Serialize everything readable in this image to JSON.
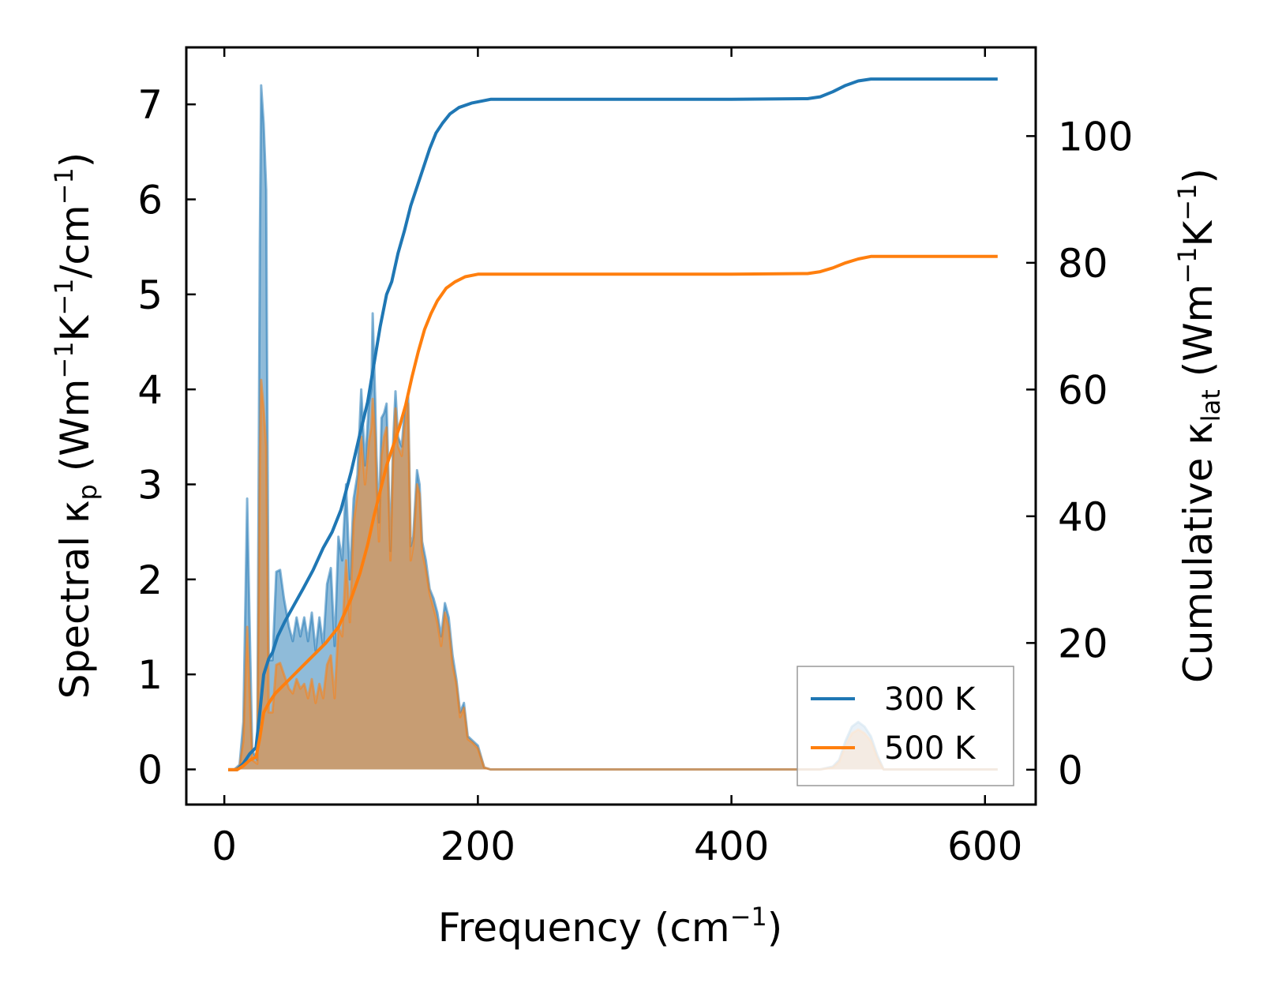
{
  "chart_data": {
    "type": "line",
    "xlabel": {
      "main": "Frequency (cm",
      "sup": "−1",
      "end": ")"
    },
    "ylabel_left": {
      "a": "Spectral κ",
      "a_sub": "p",
      "b": " (Wm",
      "b_sup": "−1",
      "c": "K",
      "c_sup": "−1",
      "d": "/cm",
      "d_sup": "−1",
      "e": ")"
    },
    "ylabel_right": {
      "a": "Cumulative κ",
      "a_sub": "lat",
      "b": " (Wm",
      "b_sup": "−1",
      "c": "K",
      "c_sup": "−1",
      "d": ")"
    },
    "xlim": [
      -30,
      640
    ],
    "ylim_left": [
      -0.37,
      7.6
    ],
    "ylim_right": [
      -5.5,
      114
    ],
    "xticks": [
      0,
      200,
      400,
      600
    ],
    "xtick_labels": [
      "0",
      "200",
      "400",
      "600"
    ],
    "yticks_left": [
      0,
      1,
      2,
      3,
      4,
      5,
      6,
      7
    ],
    "ytick_labels_left": [
      "0",
      "1",
      "2",
      "3",
      "4",
      "5",
      "6",
      "7"
    ],
    "yticks_right": [
      0,
      20,
      40,
      60,
      80,
      100
    ],
    "ytick_labels_right": [
      "0",
      "20",
      "40",
      "60",
      "80",
      "100"
    ],
    "legend": {
      "position": "lower-right",
      "entries": [
        "300 K",
        "500 K"
      ]
    },
    "colors": {
      "s300": "#1f77b4",
      "s500": "#ff7f0e"
    },
    "spectral": [
      {
        "name": "300 K",
        "x": [
          3,
          8,
          12,
          15,
          18,
          20,
          22,
          26,
          28,
          29,
          31,
          33,
          35,
          38,
          41,
          44,
          47,
          51,
          54,
          57,
          60,
          63,
          66,
          69,
          72,
          75,
          78,
          81,
          84,
          87,
          90,
          93,
          96,
          99,
          102,
          105,
          108,
          111,
          114,
          116,
          117,
          119,
          120,
          122,
          124,
          126,
          128,
          131,
          133,
          135,
          137,
          140,
          142,
          145,
          147,
          149,
          152,
          154,
          156,
          159,
          162,
          165,
          168,
          171,
          174,
          177,
          180,
          183,
          186,
          189,
          192,
          196,
          200,
          205,
          210,
          215,
          220,
          230,
          300,
          400,
          470,
          480,
          485,
          490,
          495,
          500,
          505,
          510,
          515,
          520,
          610
        ],
        "y": [
          0,
          0,
          0.05,
          0.5,
          2.85,
          1.5,
          0.2,
          0.1,
          5.5,
          7.2,
          6.8,
          6.1,
          1.15,
          1.15,
          2.08,
          2.1,
          1.8,
          1.5,
          1.35,
          1.6,
          1.4,
          1.6,
          1.35,
          1.65,
          1.25,
          1.6,
          1.3,
          1.95,
          2.12,
          1.3,
          2.45,
          2.2,
          3.0,
          2.0,
          2.85,
          3.1,
          4.0,
          3.2,
          3.85,
          4.0,
          4.8,
          3.9,
          3.3,
          2.6,
          3.7,
          3.75,
          3.85,
          2.3,
          3.4,
          3.98,
          3.5,
          3.4,
          3.75,
          3.95,
          2.35,
          2.45,
          3.15,
          3.0,
          2.4,
          2.2,
          1.9,
          1.8,
          1.65,
          1.4,
          1.75,
          1.6,
          1.2,
          0.95,
          0.6,
          0.7,
          0.35,
          0.3,
          0.25,
          0.02,
          0,
          0,
          0,
          0,
          0,
          0,
          0,
          0.03,
          0.1,
          0.3,
          0.45,
          0.5,
          0.45,
          0.35,
          0.15,
          0,
          0
        ]
      },
      {
        "name": "500 K",
        "x": [
          3,
          8,
          12,
          15,
          18,
          20,
          22,
          26,
          28,
          29,
          31,
          33,
          35,
          38,
          41,
          44,
          47,
          51,
          54,
          57,
          60,
          63,
          66,
          69,
          72,
          75,
          78,
          81,
          84,
          87,
          90,
          93,
          96,
          99,
          102,
          105,
          108,
          111,
          114,
          116,
          117,
          119,
          120,
          122,
          124,
          126,
          128,
          131,
          133,
          135,
          137,
          140,
          142,
          145,
          147,
          149,
          152,
          154,
          156,
          159,
          162,
          165,
          168,
          171,
          174,
          177,
          180,
          183,
          186,
          189,
          192,
          196,
          200,
          205,
          210,
          215,
          220,
          230,
          300,
          400,
          470,
          480,
          485,
          490,
          495,
          500,
          505,
          510,
          515,
          520,
          610
        ],
        "y": [
          0,
          0,
          0.03,
          0.3,
          1.5,
          0.8,
          0.1,
          0.06,
          3.2,
          4.1,
          3.8,
          3.4,
          0.6,
          0.6,
          1.1,
          1.12,
          1.0,
          0.85,
          0.8,
          0.95,
          0.85,
          0.9,
          0.75,
          0.95,
          0.7,
          0.9,
          0.75,
          1.1,
          1.2,
          0.75,
          1.5,
          1.4,
          2.2,
          1.55,
          2.6,
          2.9,
          3.5,
          3.0,
          3.45,
          3.6,
          3.9,
          3.5,
          3.0,
          2.4,
          3.3,
          3.5,
          3.6,
          2.2,
          3.2,
          3.8,
          3.4,
          3.3,
          3.6,
          3.85,
          2.2,
          2.35,
          3.0,
          2.9,
          2.3,
          2.1,
          1.85,
          1.7,
          1.55,
          1.3,
          1.65,
          1.5,
          1.1,
          0.9,
          0.55,
          0.65,
          0.32,
          0.28,
          0.22,
          0.02,
          0,
          0,
          0,
          0,
          0,
          0,
          0,
          0.02,
          0.08,
          0.25,
          0.38,
          0.42,
          0.38,
          0.3,
          0.12,
          0,
          0
        ]
      }
    ],
    "cumulative": [
      {
        "name": "300 K",
        "x": [
          3,
          10,
          15,
          20,
          25,
          28,
          31,
          35,
          38,
          42,
          48,
          55,
          62,
          70,
          78,
          85,
          92,
          100,
          107,
          113,
          118,
          123,
          128,
          132,
          137,
          142,
          147,
          152,
          157,
          162,
          167,
          172,
          178,
          185,
          195,
          210,
          250,
          400,
          460,
          470,
          480,
          490,
          500,
          510,
          530,
          610
        ],
        "y": [
          0,
          0,
          1.0,
          2.5,
          3.5,
          9.0,
          15.0,
          17.5,
          18.5,
          21.0,
          23.5,
          26.0,
          28.5,
          31.5,
          35.0,
          37.5,
          41.0,
          47.0,
          53.0,
          58.0,
          64.0,
          70.0,
          75.0,
          77.0,
          81.5,
          85.0,
          89.0,
          92.0,
          95.0,
          98.0,
          100.5,
          102.0,
          103.5,
          104.5,
          105.2,
          105.8,
          105.8,
          105.8,
          105.9,
          106.2,
          107.0,
          108.0,
          108.7,
          109.0,
          109.0,
          109.0
        ]
      },
      {
        "name": "500 K",
        "x": [
          3,
          10,
          15,
          20,
          25,
          28,
          31,
          35,
          40,
          50,
          60,
          70,
          80,
          90,
          100,
          107,
          113,
          118,
          123,
          128,
          133,
          138,
          143,
          148,
          153,
          158,
          163,
          168,
          175,
          182,
          190,
          200,
          210,
          250,
          400,
          460,
          470,
          480,
          490,
          500,
          510,
          530,
          610
        ],
        "y": [
          0,
          0,
          0.6,
          1.5,
          2.0,
          5.0,
          9.0,
          10.5,
          12.0,
          14.0,
          16.0,
          18.0,
          20.0,
          22.5,
          27.0,
          31.0,
          35.5,
          40.0,
          44.0,
          48.0,
          51.0,
          54.0,
          57.5,
          62.0,
          66.0,
          69.5,
          72.0,
          74.0,
          76.0,
          77.0,
          77.8,
          78.2,
          78.2,
          78.2,
          78.2,
          78.3,
          78.6,
          79.2,
          80.0,
          80.6,
          81.0,
          81.0,
          81.0
        ]
      }
    ]
  }
}
